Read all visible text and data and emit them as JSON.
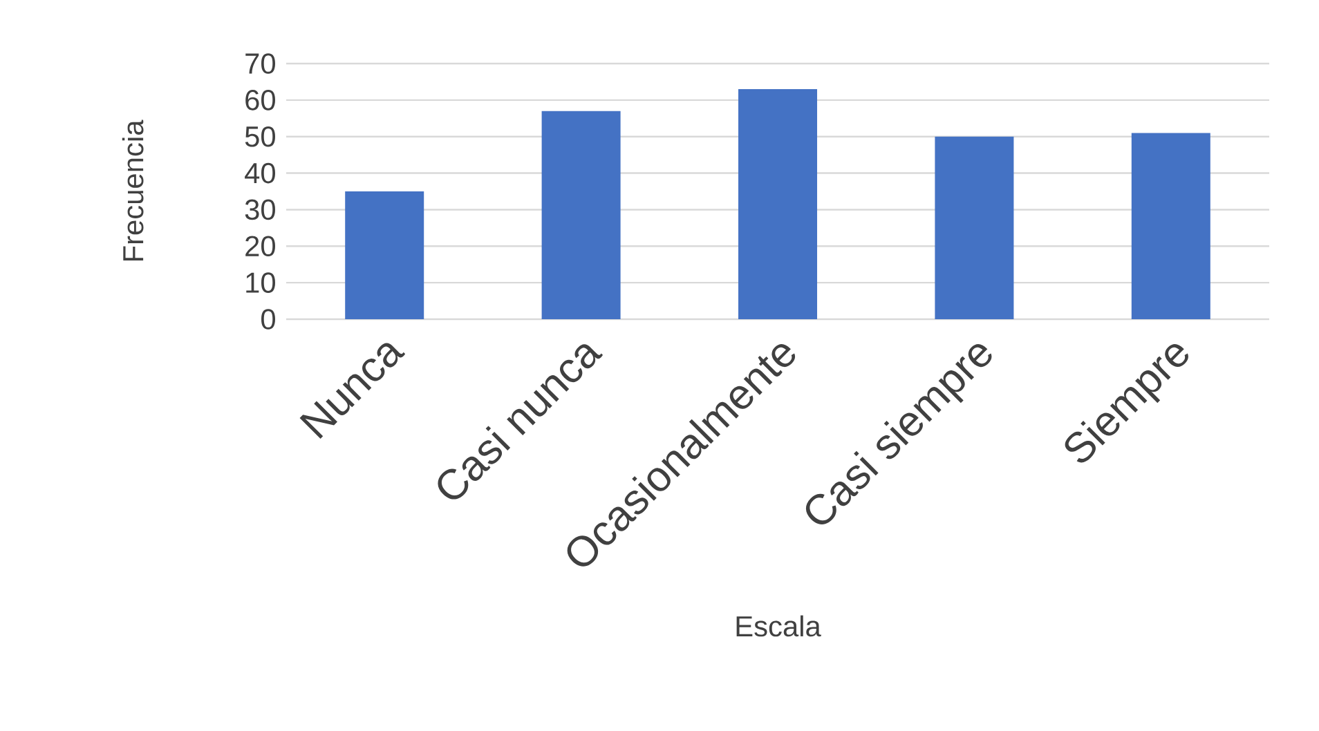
{
  "chart_data": {
    "type": "bar",
    "xlabel": "Escala",
    "ylabel": "Frecuencia",
    "categories": [
      "Nunca",
      "Casi nunca",
      "Ocasionalmente",
      "Casi siempre",
      "Siempre"
    ],
    "values": [
      35,
      57,
      63,
      50,
      51
    ],
    "color": "#4472c4",
    "ylim": [
      0,
      70
    ],
    "yticks": [
      0,
      10,
      20,
      30,
      40,
      50,
      60,
      70
    ],
    "grid": "y"
  }
}
